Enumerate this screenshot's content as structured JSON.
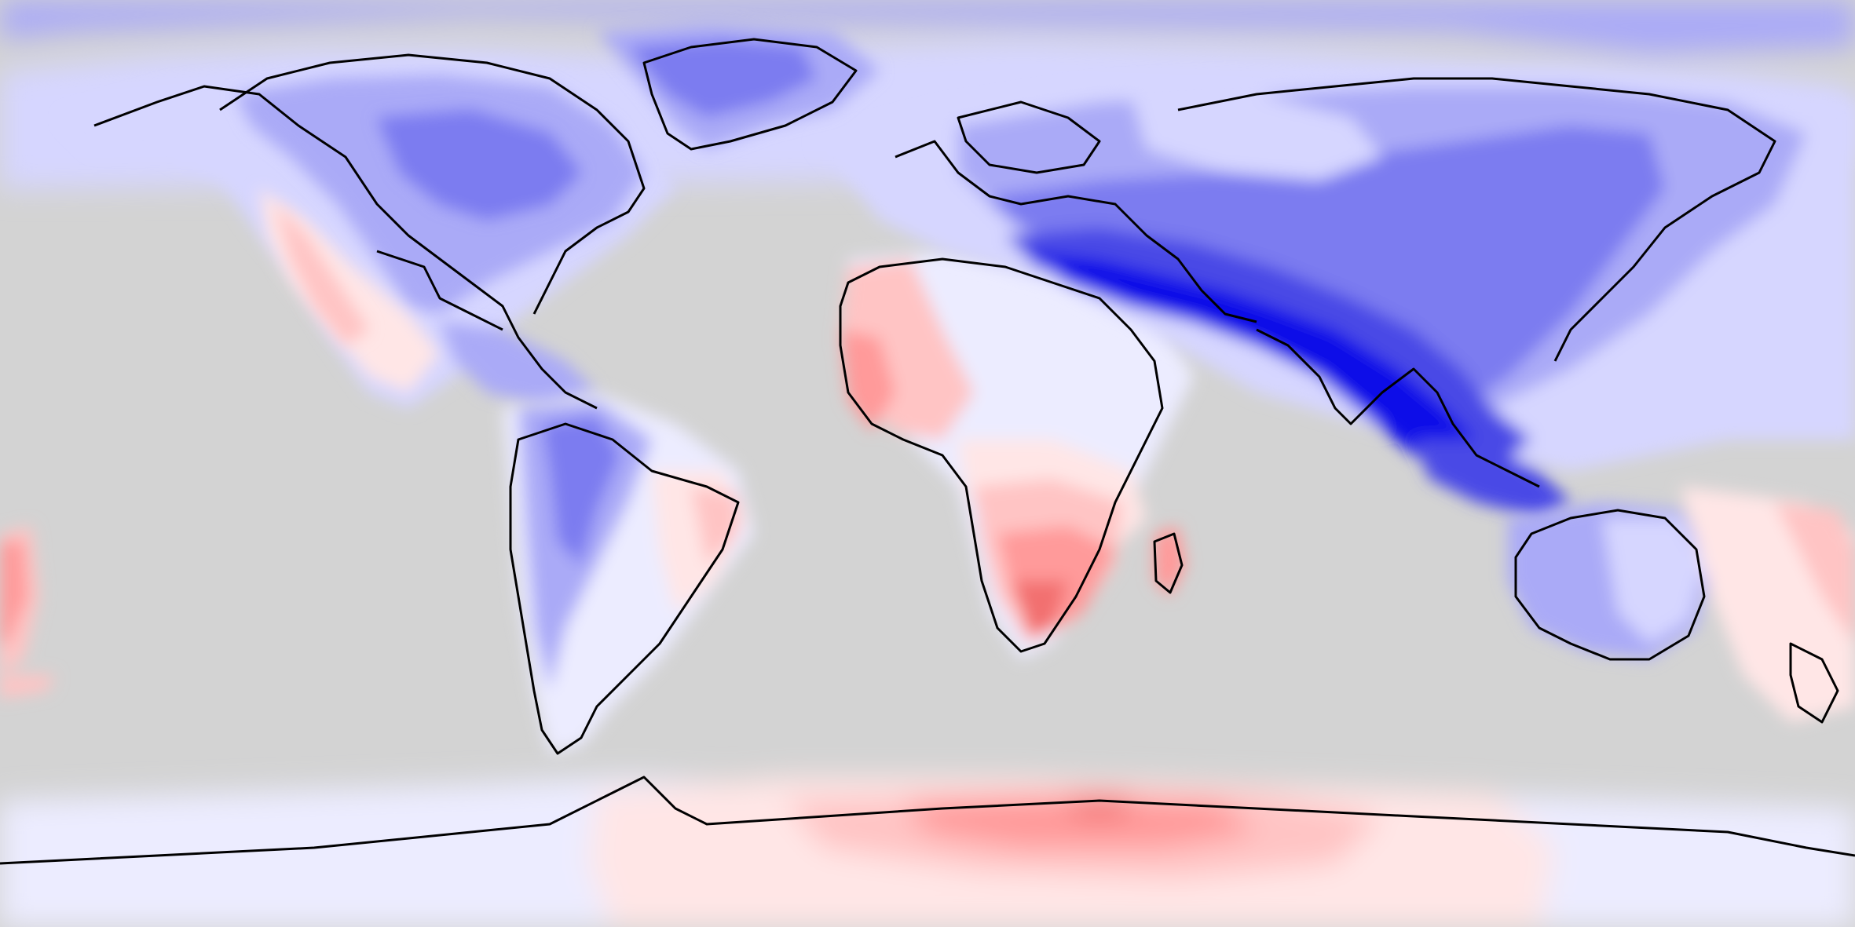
{
  "map": {
    "projection": "equirectangular",
    "ocean_color": "#d3d3d3",
    "coastline_color": "#000000",
    "palette": {
      "blue_4": "#0f0fe8",
      "blue_3": "#4a4ae6",
      "blue_2": "#7c7cf0",
      "blue_1": "#aaaaf7",
      "blue_0": "#d6d6ff",
      "near_zero": "#ececff",
      "red_0": "#ffe6e6",
      "red_1": "#ffc4c4",
      "red_2": "#ff9a9a",
      "red_3": "#f27070"
    }
  }
}
